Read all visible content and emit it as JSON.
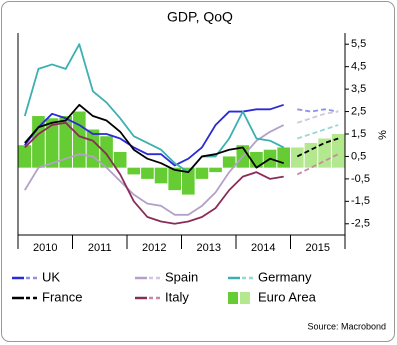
{
  "chart_data": {
    "type": "line",
    "title": "GDP, QoQ",
    "y_label": "%",
    "source": "Source: Macrobond",
    "x": [
      2010.125,
      2010.375,
      2010.625,
      2010.875,
      2011.125,
      2011.375,
      2011.625,
      2011.875,
      2012.125,
      2012.375,
      2012.625,
      2012.875,
      2013.125,
      2013.375,
      2013.625,
      2013.875,
      2014.125,
      2014.375,
      2014.625,
      2014.875,
      2015.125,
      2015.375,
      2015.625,
      2015.875
    ],
    "xlim": [
      2010,
      2016
    ],
    "xticks": [
      {
        "value": 2010.5,
        "label": "2010"
      },
      {
        "value": 2011.5,
        "label": "2011"
      },
      {
        "value": 2012.5,
        "label": "2012"
      },
      {
        "value": 2013.5,
        "label": "2013"
      },
      {
        "value": 2014.5,
        "label": "2014"
      },
      {
        "value": 2015.5,
        "label": "2015"
      }
    ],
    "ylim": [
      -3,
      6
    ],
    "yticks": [
      {
        "value": -2.5,
        "label": "-2,5"
      },
      {
        "value": -1.5,
        "label": "-1,5"
      },
      {
        "value": -0.5,
        "label": "-0,5"
      },
      {
        "value": 0.5,
        "label": "0,5"
      },
      {
        "value": 1.5,
        "label": "1,5"
      },
      {
        "value": 2.5,
        "label": "2,5"
      },
      {
        "value": 3.5,
        "label": "3,5"
      },
      {
        "value": 4.5,
        "label": "4,5"
      },
      {
        "value": 5.5,
        "label": "5,5"
      }
    ],
    "series": [
      {
        "name": "UK",
        "type": "line",
        "color": "#2a2ad8",
        "forecast_color": "#9090e8",
        "values": [
          1.0,
          1.8,
          2.4,
          2.2,
          1.9,
          1.5,
          1.5,
          1.3,
          0.9,
          0.6,
          0.6,
          0.1,
          0.4,
          0.9,
          1.9,
          2.5,
          2.5,
          2.6,
          2.6,
          2.8,
          null,
          null,
          null,
          null
        ],
        "forecast_values": [
          null,
          null,
          null,
          null,
          null,
          null,
          null,
          null,
          null,
          null,
          null,
          null,
          null,
          null,
          null,
          null,
          null,
          null,
          null,
          null,
          2.6,
          2.5,
          2.6,
          2.5
        ]
      },
      {
        "name": "Spain",
        "type": "line",
        "color": "#b4a0c8",
        "forecast_color": "#d2c6de",
        "values": [
          -1.0,
          0.0,
          0.2,
          0.4,
          0.6,
          0.5,
          0.0,
          -0.6,
          -1.2,
          -1.6,
          -1.7,
          -2.1,
          -2.1,
          -1.7,
          -1.1,
          -0.2,
          0.5,
          1.2,
          1.6,
          1.9,
          null,
          null,
          null,
          null
        ],
        "forecast_values": [
          null,
          null,
          null,
          null,
          null,
          null,
          null,
          null,
          null,
          null,
          null,
          null,
          null,
          null,
          null,
          null,
          null,
          null,
          null,
          null,
          2.0,
          2.2,
          2.4,
          2.5
        ]
      },
      {
        "name": "Germany",
        "type": "line",
        "color": "#3cb0b0",
        "forecast_color": "#9ad6d6",
        "values": [
          2.3,
          4.4,
          4.6,
          4.4,
          5.5,
          3.4,
          2.9,
          2.2,
          1.4,
          1.1,
          0.8,
          0.2,
          -0.2,
          0.5,
          0.5,
          1.3,
          2.5,
          1.3,
          1.2,
          0.9,
          null,
          null,
          null,
          null
        ],
        "forecast_values": [
          null,
          null,
          null,
          null,
          null,
          null,
          null,
          null,
          null,
          null,
          null,
          null,
          null,
          null,
          null,
          null,
          null,
          null,
          null,
          null,
          1.3,
          1.5,
          1.7,
          1.9
        ]
      },
      {
        "name": "France",
        "type": "line",
        "color": "#000000",
        "forecast_color": "#000000",
        "values": [
          1.1,
          1.8,
          2.0,
          2.1,
          2.8,
          2.3,
          2.1,
          1.6,
          0.8,
          0.4,
          0.2,
          -0.1,
          -0.2,
          0.5,
          0.6,
          0.8,
          0.9,
          0.0,
          0.4,
          0.2,
          null,
          null,
          null,
          null
        ],
        "forecast_values": [
          null,
          null,
          null,
          null,
          null,
          null,
          null,
          null,
          null,
          null,
          null,
          null,
          null,
          null,
          null,
          null,
          null,
          null,
          null,
          null,
          0.5,
          0.8,
          1.1,
          1.3
        ]
      },
      {
        "name": "Italy",
        "type": "line",
        "color": "#8a2c58",
        "forecast_color": "#c78aa6",
        "values": [
          0.9,
          1.5,
          1.9,
          2.0,
          1.4,
          1.2,
          0.6,
          -0.3,
          -1.5,
          -2.2,
          -2.4,
          -2.5,
          -2.4,
          -2.2,
          -1.8,
          -1.0,
          -0.4,
          -0.2,
          -0.5,
          -0.4,
          null,
          null,
          null,
          null
        ],
        "forecast_values": [
          null,
          null,
          null,
          null,
          null,
          null,
          null,
          null,
          null,
          null,
          null,
          null,
          null,
          null,
          null,
          null,
          null,
          null,
          null,
          null,
          -0.3,
          0.0,
          0.3,
          0.6
        ]
      },
      {
        "name": "Euro Area",
        "type": "bar",
        "color": "#66cc33",
        "forecast_color": "#b4e88e",
        "values": [
          1.0,
          2.3,
          2.2,
          2.3,
          2.5,
          1.7,
          1.4,
          0.7,
          -0.3,
          -0.5,
          -0.7,
          -1.0,
          -1.2,
          -0.5,
          -0.2,
          0.5,
          1.0,
          0.7,
          0.8,
          0.9,
          null,
          null,
          null,
          null
        ],
        "forecast_values": [
          null,
          null,
          null,
          null,
          null,
          null,
          null,
          null,
          null,
          null,
          null,
          null,
          null,
          null,
          null,
          null,
          null,
          null,
          null,
          null,
          0.9,
          1.1,
          1.3,
          1.5
        ]
      }
    ]
  }
}
